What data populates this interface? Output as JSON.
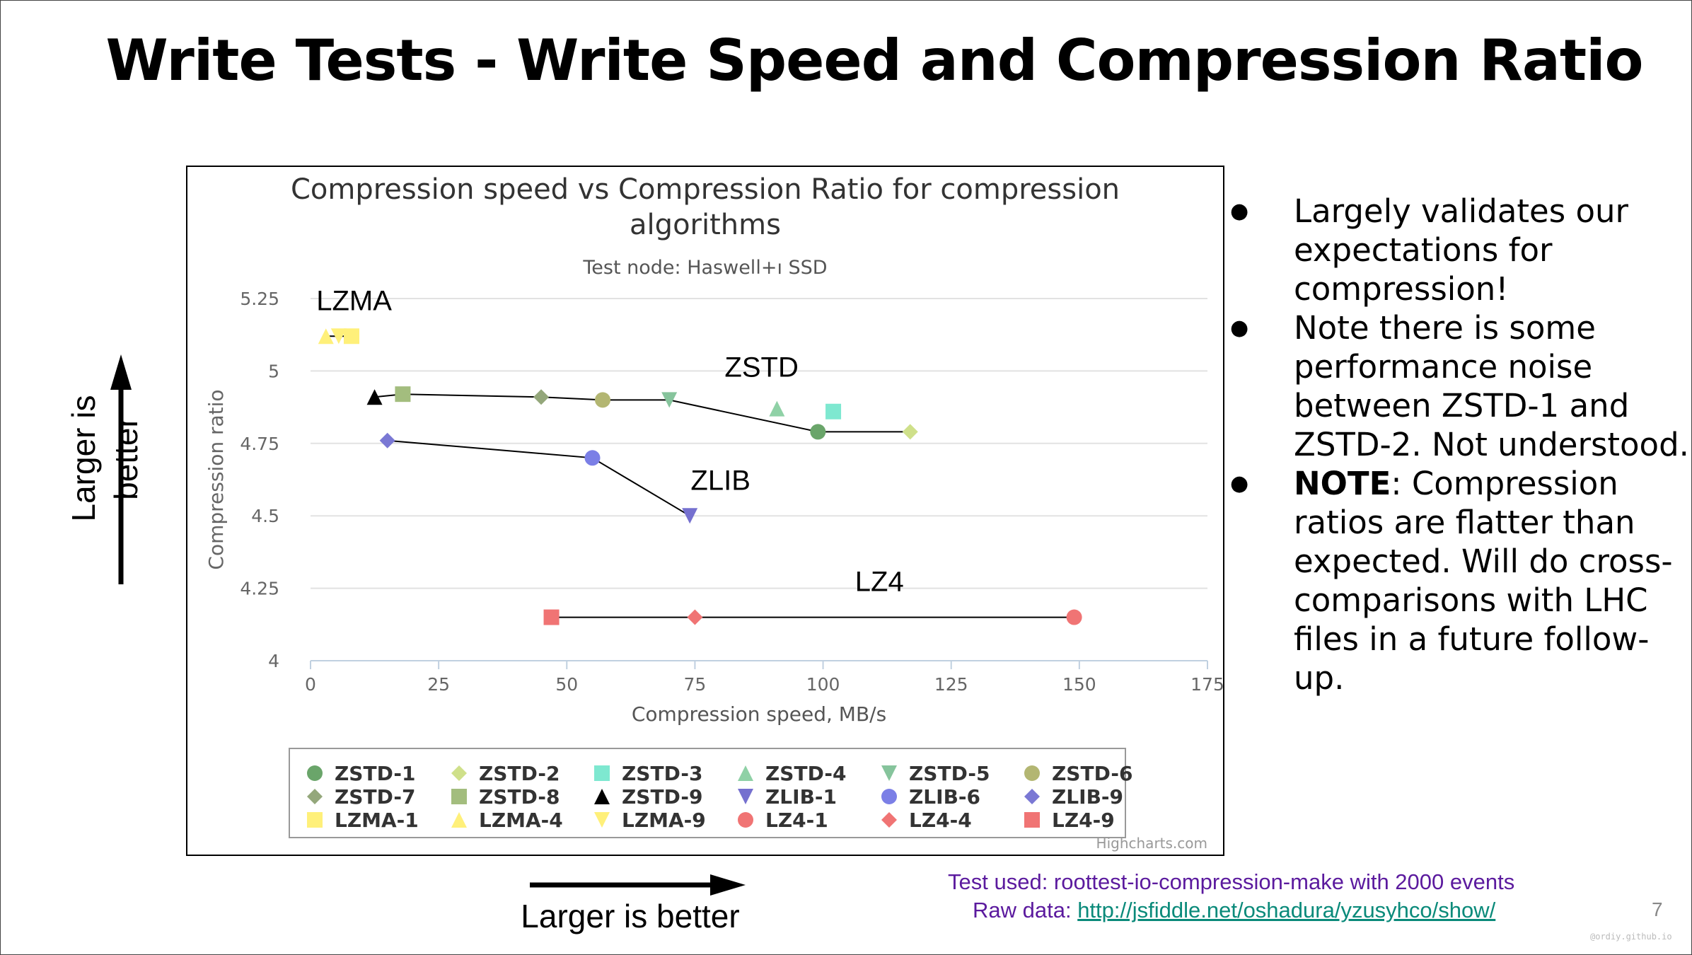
{
  "slide": {
    "title": "Write Tests - Write Speed and Compression Ratio",
    "y_arrow_text": "Larger is better",
    "x_arrow_text": "Larger is better",
    "bullets": [
      {
        "bold": "",
        "text": "Largely validates our expectations for compression!"
      },
      {
        "bold": "",
        "text": "Note there is some performance noise between ZSTD-1 and ZSTD-2.  Not understood."
      },
      {
        "bold": "NOTE",
        "text": ": Compression ratios are flatter than expected.  Will do cross-comparisons with LHC files in a future follow-up."
      }
    ],
    "test_used": "Test used: roottest-io-compression-make with 2000 events",
    "raw_data_label": "Raw data: ",
    "raw_data_link": "http://jsfiddle.net/oshadura/yzusyhco/show/",
    "page_number": "7",
    "watermark": "@ordiy.github.io"
  },
  "chart_data": {
    "type": "scatter",
    "title_line1": "Compression speed vs Compression Ratio for compression",
    "title_line2": "algorithms",
    "subtitle": "Test node: Haswell+ı  SSD",
    "xlabel": "Compression speed, MB/s",
    "ylabel": "Compression ratio",
    "xlim": [
      0,
      175
    ],
    "ylim": [
      4,
      5.25
    ],
    "x_ticks": [
      "0",
      "25",
      "50",
      "75",
      "100",
      "125",
      "150",
      "175"
    ],
    "y_ticks": [
      "4",
      "4.25",
      "4.5",
      "4.75",
      "5",
      "5.25"
    ],
    "grid": true,
    "credits": "Highcharts.com",
    "series": [
      {
        "name": "ZSTD-1",
        "x": 99,
        "y": 4.79,
        "color": "#6aa56a",
        "symbol": "circle"
      },
      {
        "name": "ZSTD-2",
        "x": 117,
        "y": 4.79,
        "color": "#cfe08a",
        "symbol": "diamond"
      },
      {
        "name": "ZSTD-3",
        "x": 102,
        "y": 4.86,
        "color": "#7ee8d0",
        "symbol": "square"
      },
      {
        "name": "ZSTD-4",
        "x": 91,
        "y": 4.87,
        "color": "#8fd1a6",
        "symbol": "triangle"
      },
      {
        "name": "ZSTD-5",
        "x": 70,
        "y": 4.9,
        "color": "#86c49c",
        "symbol": "triangle-down"
      },
      {
        "name": "ZSTD-6",
        "x": 57,
        "y": 4.9,
        "color": "#b3b672",
        "symbol": "circle"
      },
      {
        "name": "ZSTD-7",
        "x": 45,
        "y": 4.91,
        "color": "#94a77b",
        "symbol": "diamond"
      },
      {
        "name": "ZSTD-8",
        "x": 18,
        "y": 4.92,
        "color": "#a3bd7e",
        "symbol": "square"
      },
      {
        "name": "ZSTD-9",
        "x": 12.5,
        "y": 4.91,
        "color": "#000000",
        "symbol": "triangle"
      },
      {
        "name": "ZLIB-1",
        "x": 74,
        "y": 4.5,
        "color": "#7570cf",
        "symbol": "triangle-down"
      },
      {
        "name": "ZLIB-6",
        "x": 55,
        "y": 4.7,
        "color": "#7b7fe6",
        "symbol": "circle"
      },
      {
        "name": "ZLIB-9",
        "x": 15,
        "y": 4.76,
        "color": "#7a78d4",
        "symbol": "diamond"
      },
      {
        "name": "LZMA-1",
        "x": 8,
        "y": 5.12,
        "color": "#fff07a",
        "symbol": "square"
      },
      {
        "name": "LZMA-4",
        "x": 3,
        "y": 5.12,
        "color": "#fff07a",
        "symbol": "triangle"
      },
      {
        "name": "LZMA-9",
        "x": 5.5,
        "y": 5.12,
        "color": "#fff07a",
        "symbol": "triangle-down"
      },
      {
        "name": "LZ4-1",
        "x": 149,
        "y": 4.15,
        "color": "#f07474",
        "symbol": "circle"
      },
      {
        "name": "LZ4-4",
        "x": 75,
        "y": 4.15,
        "color": "#f07474",
        "symbol": "diamond"
      },
      {
        "name": "LZ4-9",
        "x": 47,
        "y": 4.15,
        "color": "#f07474",
        "symbol": "square"
      }
    ],
    "group_lines": [
      {
        "name": "ZSTD",
        "members": [
          "ZSTD-9",
          "ZSTD-8",
          "ZSTD-7",
          "ZSTD-6",
          "ZSTD-5",
          "ZSTD-1",
          "ZSTD-2"
        ],
        "label_at": [
          88,
          4.98
        ]
      },
      {
        "name": "ZLIB",
        "members": [
          "ZLIB-9",
          "ZLIB-6",
          "ZLIB-1"
        ],
        "label_at": [
          80,
          4.59
        ]
      },
      {
        "name": "LZMA",
        "members": [
          "LZMA-4",
          "LZMA-1"
        ],
        "label_at": [
          8.5,
          5.21
        ]
      },
      {
        "name": "LZ4",
        "members": [
          "LZ4-9",
          "LZ4-4",
          "LZ4-1"
        ],
        "label_at": [
          111,
          4.24
        ]
      }
    ]
  }
}
